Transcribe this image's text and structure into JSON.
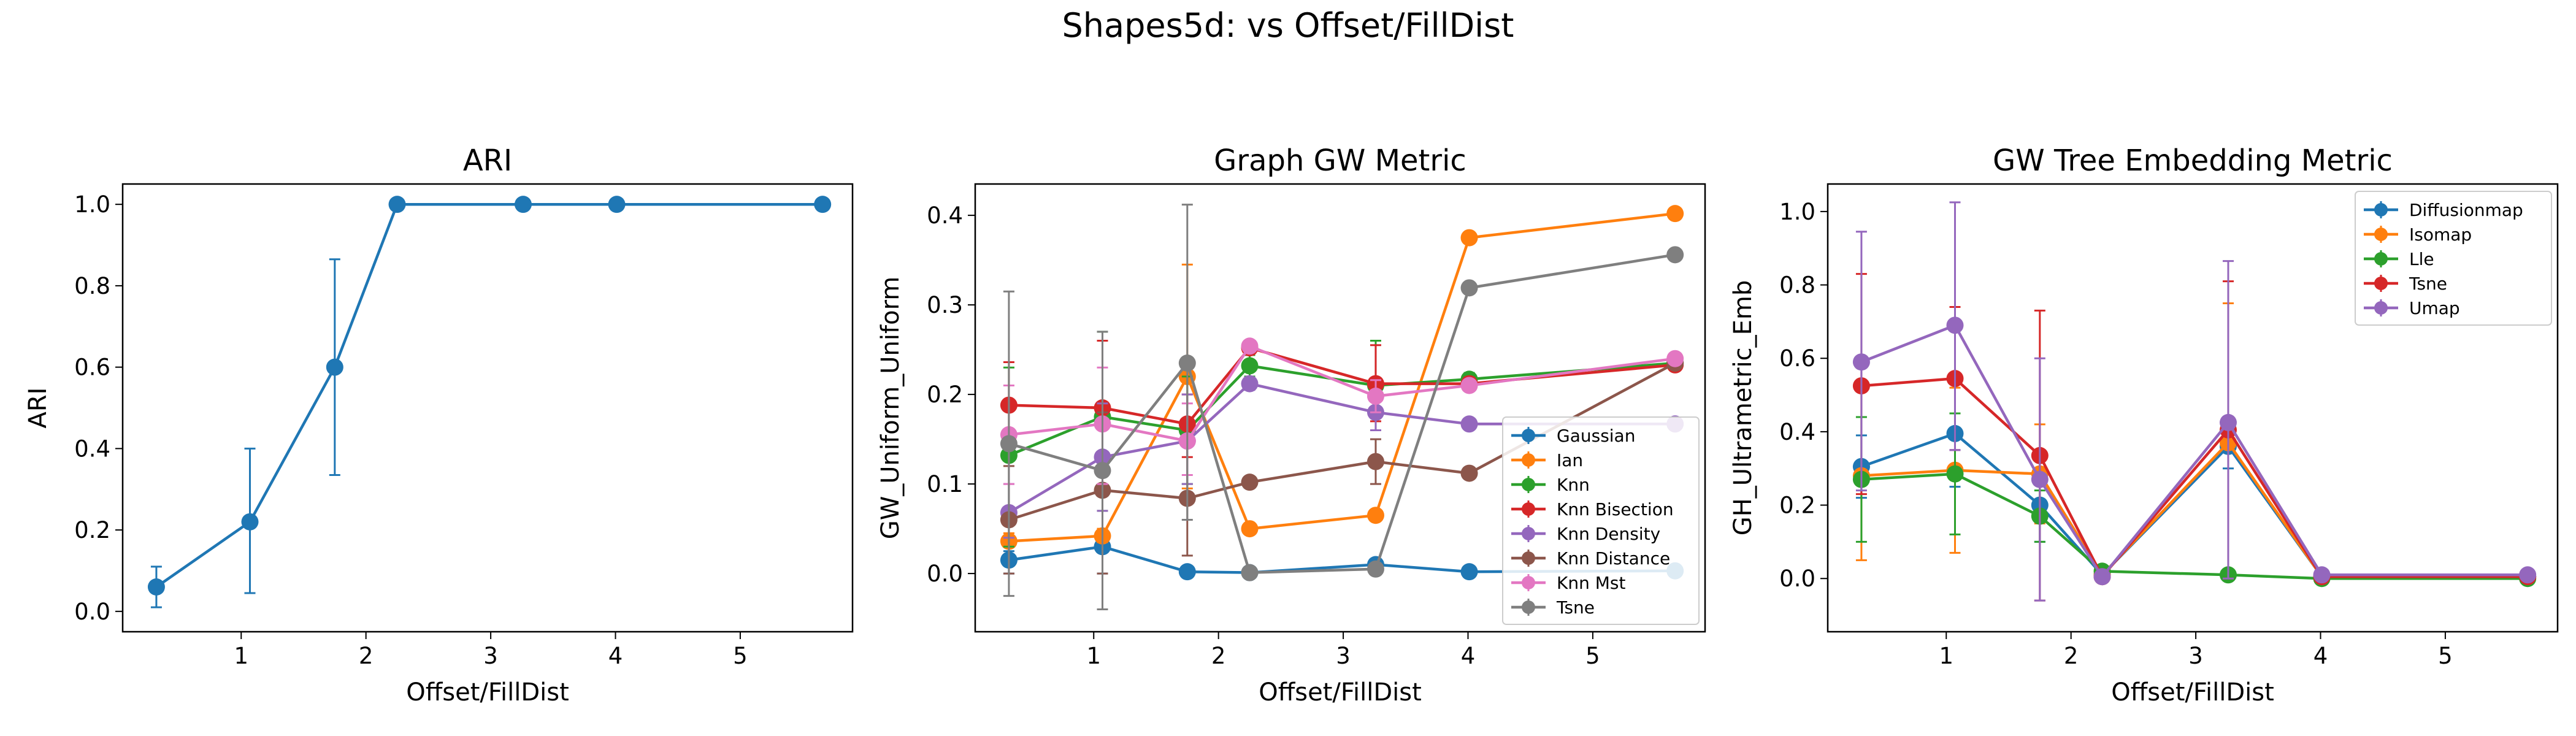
{
  "figure": {
    "suptitle": "Shapes5d: vs Offset/FillDist"
  },
  "chart_data": [
    {
      "type": "line",
      "title": "ARI",
      "xlabel": "Offset/FillDist",
      "ylabel": "ARI",
      "xlim": [
        0.05,
        5.9
      ],
      "ylim": [
        -0.05,
        1.05
      ],
      "xticks": [
        1,
        2,
        3,
        4,
        5
      ],
      "yticks": [
        0.0,
        0.2,
        0.4,
        0.6,
        0.8,
        1.0
      ],
      "ytick_labels": [
        "0.0",
        "0.2",
        "0.4",
        "0.6",
        "0.8",
        "1.0"
      ],
      "x": [
        0.32,
        1.07,
        1.75,
        2.25,
        3.26,
        4.01,
        5.66
      ],
      "legend": null,
      "series": [
        {
          "name": "",
          "color": "#1f77b4",
          "values": [
            0.06,
            0.22,
            0.6,
            1.0,
            1.0,
            1.0,
            1.0
          ],
          "err_low": [
            0.01,
            0.045,
            0.335,
            1.0,
            1.0,
            1.0,
            1.0
          ],
          "err_high": [
            0.11,
            0.4,
            0.865,
            1.0,
            1.0,
            1.0,
            1.0
          ]
        }
      ]
    },
    {
      "type": "line",
      "title": "Graph GW Metric",
      "xlabel": "Offset/FillDist",
      "ylabel": "GW_Uniform_Uniform",
      "xlim": [
        0.05,
        5.9
      ],
      "ylim": [
        -0.065,
        0.435
      ],
      "xticks": [
        1,
        2,
        3,
        4,
        5
      ],
      "yticks": [
        0.0,
        0.1,
        0.2,
        0.3,
        0.4
      ],
      "ytick_labels": [
        "0.0",
        "0.1",
        "0.2",
        "0.3",
        "0.4"
      ],
      "x": [
        0.32,
        1.07,
        1.75,
        2.25,
        3.26,
        4.01,
        5.66
      ],
      "legend": "lower-right",
      "series": [
        {
          "name": "Gaussian",
          "color": "#1f77b4",
          "values": [
            0.015,
            0.03,
            0.002,
            0.001,
            0.01,
            0.002,
            0.003
          ],
          "err_low": [
            0.0,
            0.0,
            0.0,
            0.0,
            0.0,
            0.0,
            0.0
          ],
          "err_high": [
            0.025,
            0.04,
            0.004,
            0.002,
            0.014,
            0.004,
            0.005
          ]
        },
        {
          "name": "Ian",
          "color": "#ff7f0e",
          "values": [
            0.036,
            0.042,
            0.22,
            0.05,
            0.065,
            0.375,
            0.402
          ],
          "err_low": [
            0.03,
            0.035,
            0.095,
            0.045,
            0.06,
            0.375,
            0.402
          ],
          "err_high": [
            0.045,
            0.05,
            0.345,
            0.055,
            0.07,
            0.375,
            0.402
          ]
        },
        {
          "name": "Knn",
          "color": "#2ca02c",
          "values": [
            0.132,
            0.175,
            0.16,
            0.232,
            0.21,
            0.217,
            0.235
          ],
          "err_low": [
            0.03,
            0.07,
            0.1,
            0.22,
            0.16,
            0.21,
            0.23
          ],
          "err_high": [
            0.23,
            0.27,
            0.22,
            0.244,
            0.26,
            0.224,
            0.24
          ]
        },
        {
          "name": "Knn Bisection",
          "color": "#d62728",
          "values": [
            0.188,
            0.185,
            0.167,
            0.252,
            0.212,
            0.212,
            0.233
          ],
          "err_low": [
            0.14,
            0.11,
            0.13,
            0.245,
            0.17,
            0.205,
            0.228
          ],
          "err_high": [
            0.236,
            0.26,
            0.2,
            0.26,
            0.255,
            0.219,
            0.238
          ]
        },
        {
          "name": "Knn Density",
          "color": "#9467bd",
          "values": [
            0.068,
            0.13,
            0.148,
            0.212,
            0.18,
            0.167,
            0.167
          ],
          "err_low": [
            0.04,
            0.07,
            0.1,
            0.205,
            0.16,
            0.167,
            0.167
          ],
          "err_high": [
            0.1,
            0.19,
            0.2,
            0.219,
            0.2,
            0.167,
            0.167
          ]
        },
        {
          "name": "Knn Distance",
          "color": "#8c564b",
          "values": [
            0.06,
            0.093,
            0.084,
            0.102,
            0.125,
            0.112,
            0.235
          ],
          "err_low": [
            0.0,
            0.0,
            0.02,
            0.1,
            0.1,
            0.11,
            0.23
          ],
          "err_high": [
            0.12,
            0.18,
            0.15,
            0.104,
            0.15,
            0.114,
            0.24
          ]
        },
        {
          "name": "Knn Mst",
          "color": "#e377c2",
          "values": [
            0.155,
            0.167,
            0.148,
            0.254,
            0.198,
            0.21,
            0.24
          ],
          "err_low": [
            0.1,
            0.1,
            0.11,
            0.248,
            0.18,
            0.205,
            0.236
          ],
          "err_high": [
            0.21,
            0.23,
            0.19,
            0.26,
            0.216,
            0.215,
            0.244
          ]
        },
        {
          "name": "Tsne",
          "color": "#7f7f7f",
          "values": [
            0.145,
            0.115,
            0.235,
            0.001,
            0.005,
            0.319,
            0.356
          ],
          "err_low": [
            -0.025,
            -0.04,
            0.06,
            0.0,
            0.0,
            0.319,
            0.356
          ],
          "err_high": [
            0.315,
            0.27,
            0.412,
            0.002,
            0.01,
            0.319,
            0.356
          ]
        }
      ]
    },
    {
      "type": "line",
      "title": "GW Tree Embedding Metric",
      "xlabel": "Offset/FillDist",
      "ylabel": "GH_Ultrametric_Emb",
      "xlim": [
        0.05,
        5.9
      ],
      "ylim": [
        -0.145,
        1.075
      ],
      "xticks": [
        1,
        2,
        3,
        4,
        5
      ],
      "yticks": [
        0.0,
        0.2,
        0.4,
        0.6,
        0.8,
        1.0
      ],
      "ytick_labels": [
        "0.0",
        "0.2",
        "0.4",
        "0.6",
        "0.8",
        "1.0"
      ],
      "x": [
        0.32,
        1.07,
        1.75,
        2.25,
        3.26,
        4.01,
        5.66
      ],
      "legend": "top-right",
      "series": [
        {
          "name": "Diffusionmap",
          "color": "#1f77b4",
          "values": [
            0.305,
            0.395,
            0.2,
            0.01,
            0.36,
            0.005,
            0.005
          ],
          "err_low": [
            0.22,
            0.25,
            0.1,
            0.0,
            0.3,
            0.0,
            0.0
          ],
          "err_high": [
            0.39,
            0.54,
            0.3,
            0.02,
            0.42,
            0.01,
            0.01
          ]
        },
        {
          "name": "Isomap",
          "color": "#ff7f0e",
          "values": [
            0.28,
            0.295,
            0.285,
            0.01,
            0.37,
            0.005,
            0.005
          ],
          "err_low": [
            0.05,
            0.07,
            0.15,
            0.0,
            0.0,
            0.0,
            0.0
          ],
          "err_high": [
            0.51,
            0.52,
            0.42,
            0.02,
            0.75,
            0.01,
            0.01
          ]
        },
        {
          "name": "Lle",
          "color": "#2ca02c",
          "values": [
            0.27,
            0.285,
            0.17,
            0.02,
            0.01,
            0.0,
            0.0
          ],
          "err_low": [
            0.1,
            0.12,
            0.1,
            0.02,
            0.01,
            0.0,
            0.0
          ],
          "err_high": [
            0.44,
            0.45,
            0.24,
            0.02,
            0.01,
            0.0,
            0.0
          ]
        },
        {
          "name": "Tsne",
          "color": "#d62728",
          "values": [
            0.525,
            0.545,
            0.335,
            0.005,
            0.405,
            0.005,
            0.005
          ],
          "err_low": [
            0.23,
            0.35,
            -0.06,
            0.0,
            0.0,
            0.0,
            0.0
          ],
          "err_high": [
            0.83,
            0.74,
            0.73,
            0.01,
            0.81,
            0.01,
            0.01
          ]
        },
        {
          "name": "Umap",
          "color": "#9467bd",
          "values": [
            0.59,
            0.69,
            0.27,
            0.005,
            0.425,
            0.01,
            0.01
          ],
          "err_low": [
            0.24,
            0.35,
            -0.06,
            0.0,
            0.0,
            0.0,
            0.0
          ],
          "err_high": [
            0.945,
            1.025,
            0.6,
            0.01,
            0.865,
            0.02,
            0.02
          ]
        }
      ]
    }
  ]
}
